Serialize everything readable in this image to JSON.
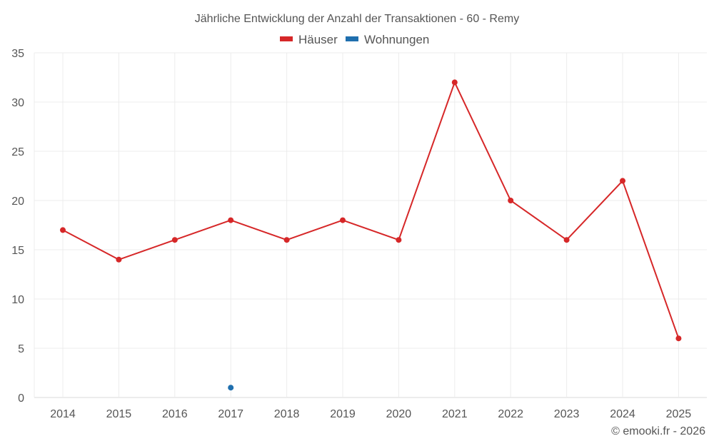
{
  "chart_data": {
    "type": "line",
    "title": "Jährliche Entwicklung der Anzahl der Transaktionen - 60 - Remy",
    "xlabel": "",
    "ylabel": "",
    "categories": [
      "2014",
      "2015",
      "2016",
      "2017",
      "2018",
      "2019",
      "2020",
      "2021",
      "2022",
      "2023",
      "2024",
      "2025"
    ],
    "ylim": [
      0,
      35
    ],
    "yticks": [
      0,
      5,
      10,
      15,
      20,
      25,
      30,
      35
    ],
    "grid": true,
    "legend_position": "top",
    "series": [
      {
        "name": "Häuser",
        "color": "#d62728",
        "values": [
          17,
          14,
          16,
          18,
          16,
          18,
          16,
          32,
          20,
          16,
          22,
          6
        ]
      },
      {
        "name": "Wohnungen",
        "color": "#1f6fae",
        "values": [
          null,
          null,
          null,
          1,
          null,
          null,
          null,
          null,
          null,
          null,
          null,
          null
        ]
      }
    ]
  },
  "credit": "© emooki.fr - 2026"
}
